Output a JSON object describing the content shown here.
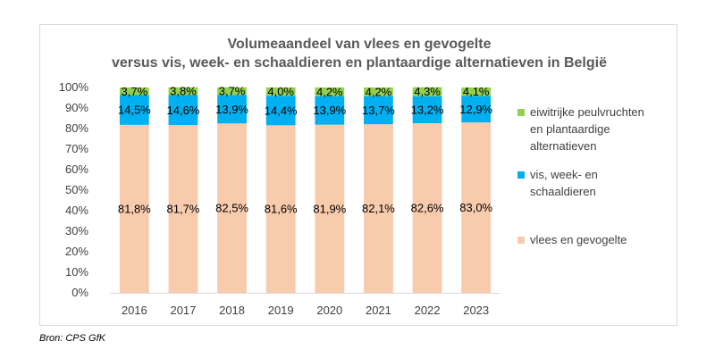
{
  "chart_data": {
    "type": "bar",
    "stacked": true,
    "title_lines": [
      "Volumeaandeel van vlees en gevogelte",
      "versus vis, week- en schaaldieren en plantaardige alternatieven in België"
    ],
    "categories": [
      "2016",
      "2017",
      "2018",
      "2019",
      "2020",
      "2021",
      "2022",
      "2023"
    ],
    "series": [
      {
        "name": "vlees en gevogelte",
        "color": "#f8cbad",
        "values": [
          81.8,
          81.7,
          82.5,
          81.6,
          81.9,
          82.1,
          82.6,
          83.0
        ],
        "labels": [
          "81,8%",
          "81,7%",
          "82,5%",
          "81,6%",
          "81,9%",
          "82,1%",
          "82,6%",
          "83,0%"
        ]
      },
      {
        "name": "vis, week- en schaaldieren",
        "color": "#00b0f0",
        "values": [
          14.5,
          14.6,
          13.9,
          14.4,
          13.9,
          13.7,
          13.2,
          12.9
        ],
        "labels": [
          "14,5%",
          "14,6%",
          "13,9%",
          "14,4%",
          "13,9%",
          "13,7%",
          "13,2%",
          "12,9%"
        ]
      },
      {
        "name": "eiwitrijke peulvruchten en plantaardige alternatieven",
        "color": "#92d050",
        "values": [
          3.7,
          3.8,
          3.7,
          4.0,
          4.2,
          4.2,
          4.3,
          4.1
        ],
        "labels": [
          "3,7%",
          "3,8%",
          "3,7%",
          "4,0%",
          "4,2%",
          "4,2%",
          "4,3%",
          "4,1%"
        ]
      }
    ],
    "legend": [
      {
        "lines": [
          "eiwitrijke peulvruchten",
          "en plantaardige",
          "alternatieven"
        ],
        "color": "#92d050"
      },
      {
        "lines": [
          "vis, week- en",
          "schaaldieren"
        ],
        "color": "#00b0f0"
      },
      {
        "lines": [
          "vlees en gevogelte"
        ],
        "color": "#f8cbad"
      }
    ],
    "legend_position": "right",
    "y_ticks": [
      "0%",
      "10%",
      "20%",
      "30%",
      "40%",
      "50%",
      "60%",
      "70%",
      "80%",
      "90%",
      "100%"
    ],
    "ylim": [
      0,
      100
    ],
    "grid": false
  },
  "source": "Bron: CPS GfK"
}
